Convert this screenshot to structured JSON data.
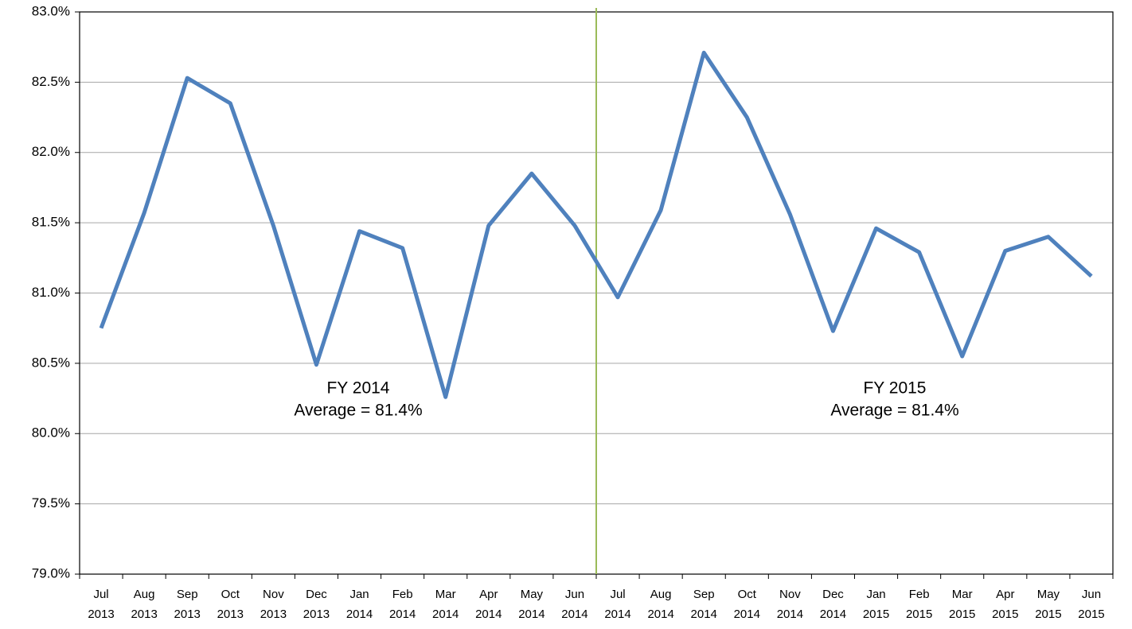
{
  "chart_data": {
    "type": "line",
    "categories": [
      "Jul 2013",
      "Aug 2013",
      "Sep 2013",
      "Oct 2013",
      "Nov 2013",
      "Dec 2013",
      "Jan 2014",
      "Feb 2014",
      "Mar 2014",
      "Apr 2014",
      "May 2014",
      "Jun 2014",
      "Jul 2014",
      "Aug 2014",
      "Sep 2014",
      "Oct 2014",
      "Nov 2014",
      "Dec 2014",
      "Jan 2015",
      "Feb 2015",
      "Mar 2015",
      "Apr 2015",
      "May 2015",
      "Jun 2015"
    ],
    "values": [
      80.75,
      81.57,
      82.53,
      82.35,
      81.48,
      80.49,
      81.44,
      81.32,
      80.26,
      81.48,
      81.85,
      81.48,
      80.97,
      81.59,
      82.71,
      82.25,
      81.56,
      80.73,
      81.46,
      81.29,
      80.55,
      81.3,
      81.4,
      81.12
    ],
    "color": "#4f81bd",
    "divider_color": "#9bbb59",
    "ylim": [
      79.0,
      83.0
    ],
    "yticks": [
      {
        "value": 79.0,
        "label": "79.0%"
      },
      {
        "value": 79.5,
        "label": "79.5%"
      },
      {
        "value": 80.0,
        "label": "80.0%"
      },
      {
        "value": 80.5,
        "label": "80.5%"
      },
      {
        "value": 81.0,
        "label": "81.0%"
      },
      {
        "value": 81.5,
        "label": "81.5%"
      },
      {
        "value": 82.0,
        "label": "82.0%"
      },
      {
        "value": 82.5,
        "label": "82.5%"
      },
      {
        "value": 83.0,
        "label": "83.0%"
      }
    ],
    "grid": true,
    "annotations": [
      [
        "FY 2014",
        "Average = 81.4%"
      ],
      [
        "FY 2015",
        "Average = 81.4%"
      ]
    ]
  }
}
